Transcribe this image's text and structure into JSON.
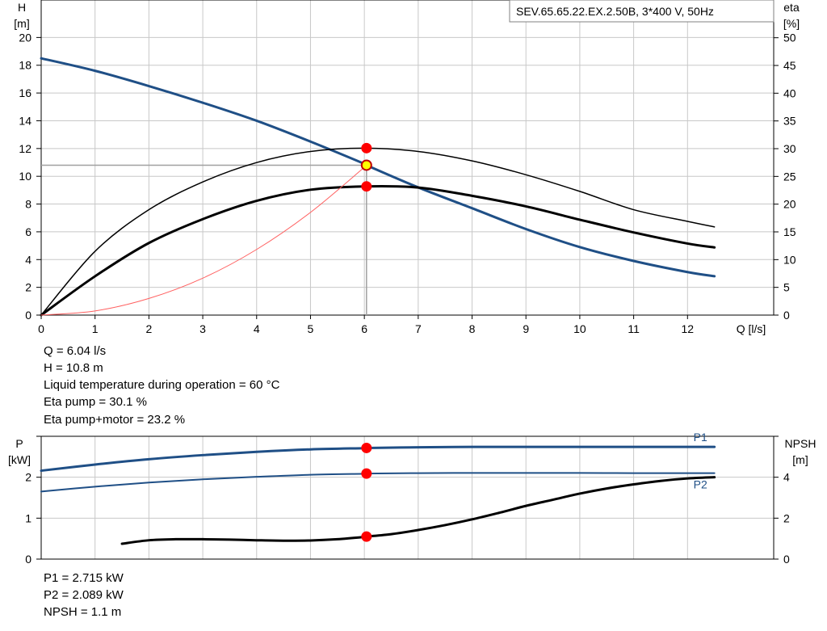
{
  "legend": "SEV.65.65.22.EX.2.50B, 3*400  V, 50Hz",
  "colors": {
    "blue": "#1f4f86",
    "black": "#000000",
    "red": "#ff0000",
    "grid": "#c8c8c8",
    "system": "#ff6060",
    "yellow": "#ffff00"
  },
  "operating_info": [
    "Q = 6.04 l/s",
    "H = 10.8 m",
    "Liquid temperature during operation = 60 °C",
    "Eta pump = 30.1 %",
    "Eta pump+motor = 23.2 %"
  ],
  "power_info": [
    "P1 = 2.715 kW",
    "P2 = 2.089 kW",
    "NPSH = 1.1 m"
  ],
  "chart_data": [
    {
      "type": "line",
      "title": "SEV.65.65.22.EX.2.50B, 3*400  V, 50Hz",
      "xlabel": "Q [l/s]",
      "ylabel_left_line1": "H",
      "ylabel_left_line2": "[m]",
      "ylabel_right_line1": "eta",
      "ylabel_right_line2": "[%]",
      "xlim": [
        0,
        13.6
      ],
      "ylim_left": [
        0,
        22.7
      ],
      "ylim_right": [
        0,
        56.8
      ],
      "x_ticks": [
        "0",
        "1",
        "2",
        "3",
        "4",
        "5",
        "6",
        "7",
        "8",
        "9",
        "10",
        "11",
        "12"
      ],
      "y_left_ticks": [
        "0",
        "2",
        "4",
        "6",
        "8",
        "10",
        "12",
        "14",
        "16",
        "18",
        "20"
      ],
      "y_right_ticks": [
        "0",
        "5",
        "10",
        "15",
        "20",
        "25",
        "30",
        "35",
        "40",
        "45",
        "50"
      ],
      "grid": true,
      "series": [
        {
          "name": "H",
          "axis": "left",
          "color": "#1f4f86",
          "width": 3,
          "x": [
            0,
            1,
            2,
            3,
            4,
            5,
            6,
            6.04,
            7,
            8,
            9,
            10,
            11,
            12,
            12.5
          ],
          "y": [
            18.5,
            17.6,
            16.5,
            15.3,
            14.0,
            12.5,
            10.9,
            10.8,
            9.2,
            7.7,
            6.2,
            4.9,
            3.9,
            3.1,
            2.8
          ]
        },
        {
          "name": "Eta pump",
          "axis": "right",
          "color": "#000000",
          "width": 1.5,
          "x": [
            0,
            1,
            2,
            3,
            4,
            5,
            6,
            7,
            8,
            9,
            10,
            11,
            12,
            12.5
          ],
          "y": [
            0,
            11.5,
            19.0,
            24.0,
            27.5,
            29.5,
            30.1,
            29.5,
            27.8,
            25.3,
            22.3,
            19.0,
            16.9,
            15.9
          ]
        },
        {
          "name": "Eta pump+motor",
          "axis": "right",
          "color": "#000000",
          "width": 3,
          "x": [
            0,
            1,
            2,
            3,
            4,
            5,
            6,
            7,
            8,
            9,
            10,
            11,
            12,
            12.5
          ],
          "y": [
            0,
            7.0,
            13.0,
            17.3,
            20.6,
            22.6,
            23.2,
            23.0,
            21.5,
            19.6,
            17.2,
            14.9,
            12.9,
            12.2
          ]
        },
        {
          "name": "System curve",
          "axis": "left",
          "color": "#ff6060",
          "width": 1,
          "x": [
            0,
            1,
            2,
            3,
            4,
            5,
            6,
            6.04
          ],
          "y": [
            0,
            0.3,
            1.2,
            2.66,
            4.73,
            7.4,
            10.65,
            10.8
          ]
        }
      ],
      "operating_point": {
        "x": 6.04,
        "y": 10.8
      },
      "markers": [
        {
          "axis": "right",
          "x": 6.04,
          "y": 30.1
        },
        {
          "axis": "right",
          "x": 6.04,
          "y": 23.2
        }
      ]
    },
    {
      "type": "line",
      "ylabel_left_line1": "P",
      "ylabel_left_line2": "[kW]",
      "ylabel_right_line1": "NPSH",
      "ylabel_right_line2": "[m]",
      "xlim": [
        0,
        13.6
      ],
      "ylim_left": [
        0,
        3.0
      ],
      "ylim_right": [
        0,
        6.0
      ],
      "y_left_ticks": [
        "0",
        "1",
        "2"
      ],
      "y_right_ticks": [
        "0",
        "2",
        "4"
      ],
      "grid": true,
      "series": [
        {
          "name": "P1",
          "label": "P1",
          "axis": "left",
          "color": "#1f4f86",
          "width": 3,
          "x": [
            0,
            1,
            2,
            3,
            4,
            5,
            6,
            6.04,
            7,
            8,
            9,
            10,
            11,
            12,
            12.5
          ],
          "y": [
            2.16,
            2.31,
            2.44,
            2.54,
            2.62,
            2.68,
            2.71,
            2.715,
            2.73,
            2.74,
            2.74,
            2.74,
            2.74,
            2.74,
            2.74
          ]
        },
        {
          "name": "P2",
          "label": "P2",
          "axis": "left",
          "color": "#1f4f86",
          "width": 2,
          "x": [
            0,
            1,
            2,
            3,
            4,
            5,
            6,
            6.04,
            7,
            8,
            9,
            10,
            11,
            12,
            12.5
          ],
          "y": [
            1.65,
            1.77,
            1.87,
            1.95,
            2.01,
            2.06,
            2.085,
            2.089,
            2.1,
            2.105,
            2.105,
            2.105,
            2.1,
            2.1,
            2.1
          ]
        },
        {
          "name": "NPSH",
          "axis": "right",
          "color": "#000000",
          "width": 3,
          "x": [
            1.5,
            2,
            2.5,
            3,
            3.5,
            4,
            4.5,
            5,
            5.5,
            6,
            6.04,
            6.5,
            7,
            7.5,
            8,
            8.5,
            9,
            9.5,
            10,
            10.5,
            11,
            11.5,
            12,
            12.5
          ],
          "y": [
            0.75,
            0.92,
            0.97,
            0.97,
            0.95,
            0.92,
            0.9,
            0.91,
            0.97,
            1.08,
            1.1,
            1.22,
            1.42,
            1.66,
            1.94,
            2.26,
            2.6,
            2.9,
            3.2,
            3.45,
            3.65,
            3.82,
            3.94,
            4.0
          ]
        }
      ],
      "markers": [
        {
          "axis": "left",
          "x": 6.04,
          "y": 2.715
        },
        {
          "axis": "left",
          "x": 6.04,
          "y": 2.089
        },
        {
          "axis": "right",
          "x": 6.04,
          "y": 1.1
        }
      ]
    }
  ]
}
